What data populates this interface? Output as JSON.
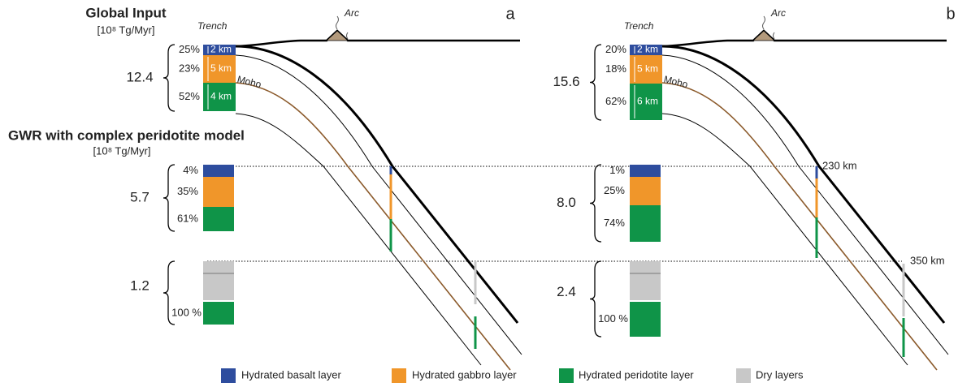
{
  "header": {
    "input_title": "Global Input",
    "input_unit": "[10⁸ Tg/Myr]",
    "gwr_title": "GWR with complex peridotite model",
    "gwr_unit": "[10⁸ Tg/Myr]"
  },
  "depths": [
    "230 km",
    "350 km"
  ],
  "panels": [
    {
      "label": "a",
      "trench": "Trench",
      "arc": "Arc",
      "moho": "Moho",
      "input": {
        "total": "12.4",
        "percents": [
          "25%",
          "23%",
          "52%"
        ],
        "thickness": [
          "2 km",
          "5 km",
          "4 km"
        ]
      },
      "gwr_230": {
        "total": "5.7",
        "percents": [
          "4%",
          "35%",
          "61%"
        ]
      },
      "gwr_350": {
        "total": "1.2",
        "percents": [
          "100 %"
        ]
      }
    },
    {
      "label": "b",
      "trench": "Trench",
      "arc": "Arc",
      "moho": "Moho",
      "input": {
        "total": "15.6",
        "percents": [
          "20%",
          "18%",
          "62%"
        ],
        "thickness": [
          "2 km",
          "5 km",
          "6 km"
        ]
      },
      "gwr_230": {
        "total": "8.0",
        "percents": [
          "1%",
          "25%",
          "74%"
        ]
      },
      "gwr_350": {
        "total": "2.4",
        "percents": [
          "100 %"
        ]
      }
    }
  ],
  "legend": [
    "Hydrated basalt layer",
    "Hydrated gabbro layer",
    "Hydrated peridotite layer",
    "Dry layers"
  ]
}
